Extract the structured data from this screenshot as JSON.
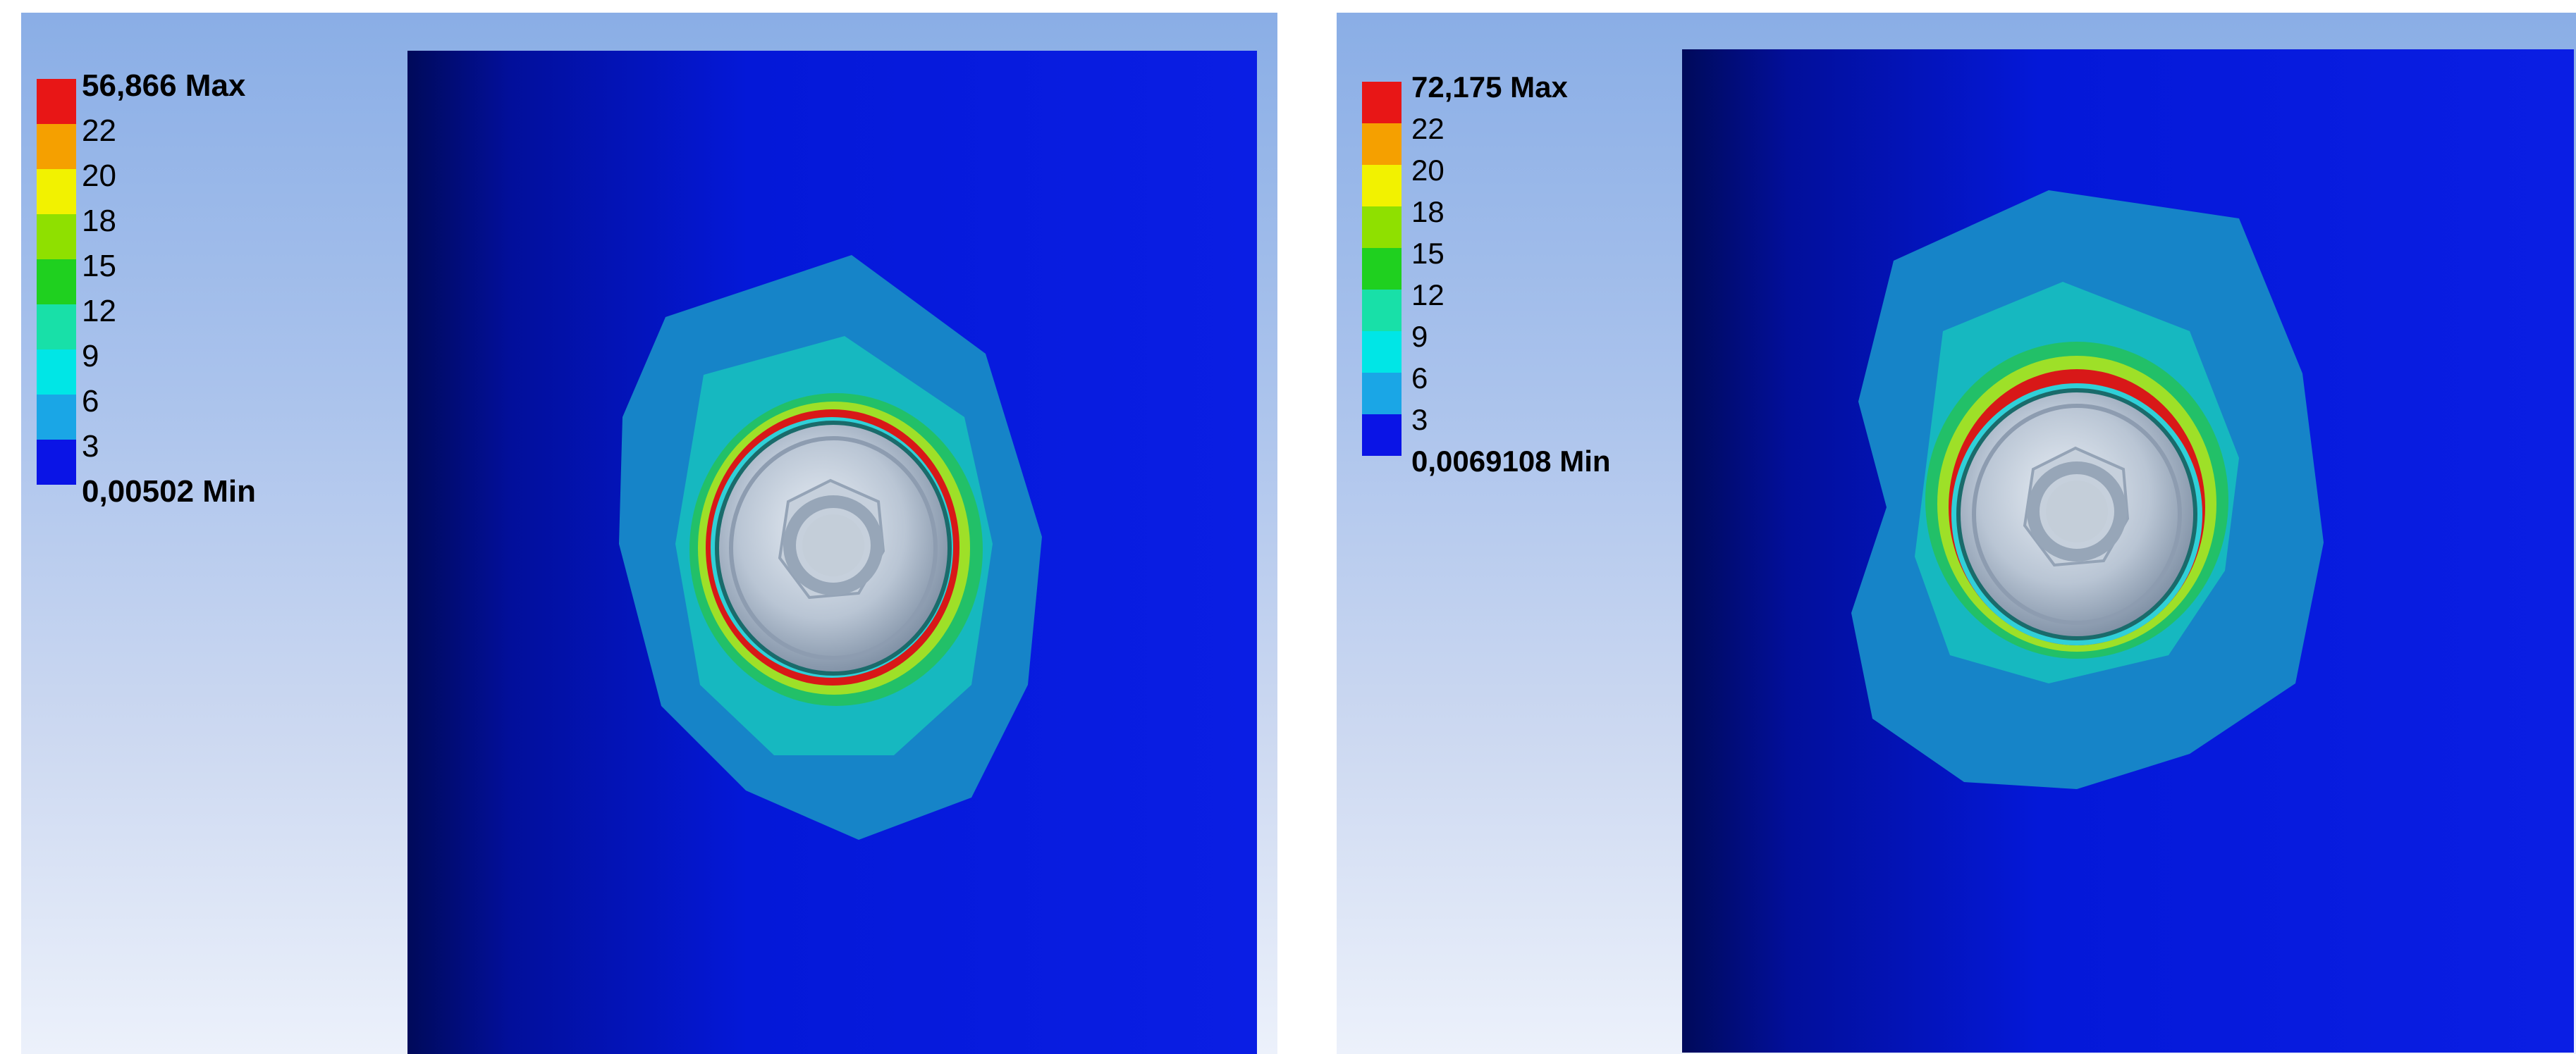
{
  "panels": [
    {
      "legend": {
        "max_label": "56,866 Max",
        "ticks": [
          "22",
          "20",
          "18",
          "15",
          "12",
          "9",
          "6",
          "3"
        ],
        "min_label": "0,00502 Min"
      }
    },
    {
      "legend": {
        "max_label": "72,175 Max",
        "ticks": [
          "22",
          "20",
          "18",
          "15",
          "12",
          "9",
          "6",
          "3"
        ],
        "min_label": "0,0069108 Min"
      }
    }
  ],
  "colors": {
    "bands": [
      "#e81616",
      "#f5a000",
      "#f2f200",
      "#8fe000",
      "#1fd01f",
      "#18e0a8",
      "#00e6e6",
      "#1aa6e6",
      "#0a14e6"
    ],
    "background_top": "#8aaee6",
    "background_bottom": "#ecf1fb"
  }
}
